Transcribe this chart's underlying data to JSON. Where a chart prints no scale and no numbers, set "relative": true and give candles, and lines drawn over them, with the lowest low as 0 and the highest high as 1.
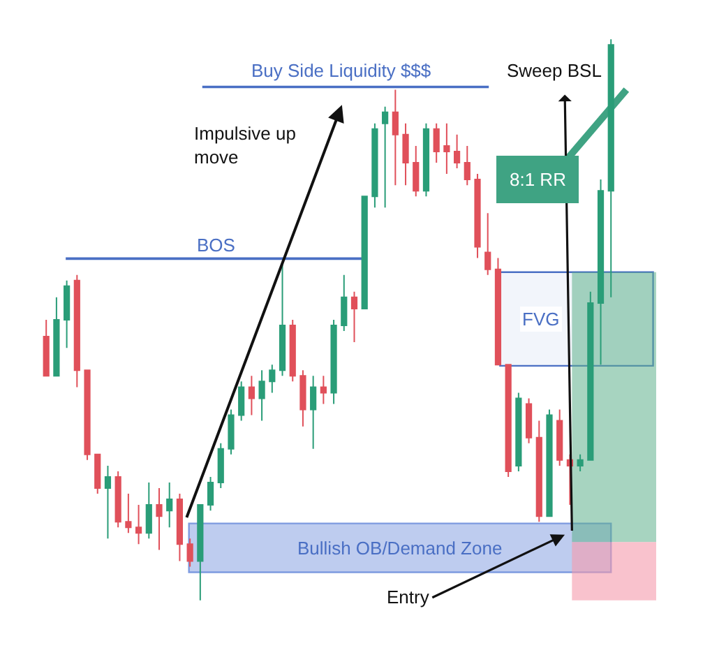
{
  "chart_data": {
    "type": "candlestick",
    "relative": true,
    "categories": [
      null,
      null,
      null,
      null,
      null,
      null,
      null,
      null,
      null,
      null,
      null,
      null,
      null,
      null,
      null,
      null,
      null,
      null,
      null,
      null,
      null,
      null,
      null,
      null,
      null,
      null,
      null,
      null,
      null,
      null,
      null,
      null,
      null,
      null,
      null,
      null,
      null,
      null,
      null,
      null,
      null,
      null,
      null,
      null,
      null,
      null,
      null,
      null,
      null,
      null,
      null,
      null,
      null,
      null,
      null,
      null
    ],
    "ohlc": [
      [
        0.47,
        0.5,
        0.4,
        0.4
      ],
      [
        0.4,
        0.54,
        0.4,
        0.5
      ],
      [
        0.5,
        0.57,
        0.45,
        0.56
      ],
      [
        0.57,
        0.58,
        0.38,
        0.41
      ],
      [
        0.41,
        0.41,
        0.25,
        0.26
      ],
      [
        0.26,
        0.26,
        0.19,
        0.2
      ],
      [
        0.2,
        0.24,
        0.11,
        0.22
      ],
      [
        0.22,
        0.23,
        0.13,
        0.14
      ],
      [
        0.14,
        0.19,
        0.12,
        0.13
      ],
      [
        0.13,
        0.17,
        0.1,
        0.12
      ],
      [
        0.12,
        0.21,
        0.11,
        0.17
      ],
      [
        0.17,
        0.2,
        0.09,
        0.15
      ],
      [
        0.16,
        0.21,
        0.13,
        0.18
      ],
      [
        0.18,
        0.19,
        0.07,
        0.1
      ],
      [
        0.1,
        0.11,
        0.06,
        0.07
      ],
      [
        0.07,
        0.17,
        0.0,
        0.17
      ],
      [
        0.17,
        0.22,
        0.16,
        0.21
      ],
      [
        0.21,
        0.28,
        0.2,
        0.27
      ],
      [
        0.27,
        0.34,
        0.26,
        0.33
      ],
      [
        0.33,
        0.39,
        0.32,
        0.38
      ],
      [
        0.38,
        0.4,
        0.33,
        0.36
      ],
      [
        0.36,
        0.41,
        0.32,
        0.39
      ],
      [
        0.39,
        0.42,
        0.37,
        0.41
      ],
      [
        0.41,
        0.6,
        0.4,
        0.49
      ],
      [
        0.49,
        0.5,
        0.39,
        0.4
      ],
      [
        0.4,
        0.41,
        0.31,
        0.34
      ],
      [
        0.34,
        0.4,
        0.27,
        0.38
      ],
      [
        0.38,
        0.4,
        0.35,
        0.37
      ],
      [
        0.37,
        0.5,
        0.35,
        0.49
      ],
      [
        0.49,
        0.58,
        0.48,
        0.54
      ],
      [
        0.54,
        0.55,
        0.46,
        0.52
      ],
      [
        0.52,
        0.72,
        0.52,
        0.72
      ],
      [
        0.72,
        0.85,
        0.7,
        0.84
      ],
      [
        0.85,
        0.88,
        0.7,
        0.87
      ],
      [
        0.87,
        0.91,
        0.74,
        0.83
      ],
      [
        0.83,
        0.85,
        0.74,
        0.78
      ],
      [
        0.78,
        0.81,
        0.72,
        0.73
      ],
      [
        0.73,
        0.85,
        0.72,
        0.84
      ],
      [
        0.84,
        0.85,
        0.78,
        0.8
      ],
      [
        0.81,
        0.85,
        0.76,
        0.8
      ],
      [
        0.8,
        0.83,
        0.77,
        0.78
      ],
      [
        0.78,
        0.81,
        0.74,
        0.75
      ],
      [
        0.75,
        0.76,
        0.61,
        0.63
      ],
      [
        0.62,
        0.69,
        0.58,
        0.59
      ],
      [
        0.59,
        0.61,
        0.42,
        0.42
      ],
      [
        0.42,
        0.42,
        0.22,
        0.23
      ],
      [
        0.24,
        0.37,
        0.23,
        0.36
      ],
      [
        0.35,
        0.36,
        0.28,
        0.29
      ],
      [
        0.29,
        0.32,
        0.14,
        0.15
      ],
      [
        0.15,
        0.34,
        0.15,
        0.33
      ],
      [
        0.32,
        0.34,
        0.24,
        0.25
      ],
      [
        0.25,
        0.26,
        0.17,
        0.24
      ],
      [
        0.24,
        0.26,
        0.23,
        0.25
      ],
      [
        0.25,
        0.55,
        0.25,
        0.53
      ],
      [
        0.53,
        0.75,
        0.42,
        0.73
      ],
      [
        0.73,
        1.0,
        0.54,
        0.99
      ]
    ],
    "colors": [
      "#e0505a",
      "#2a9d78",
      "#2a9d78",
      "#e0505a",
      "#e0505a",
      "#e0505a",
      "#2a9d78",
      "#e0505a",
      "#e0505a",
      "#e0505a",
      "#2a9d78",
      "#e0505a",
      "#2a9d78",
      "#e0505a",
      "#e0505a",
      "#2a9d78",
      "#2a9d78",
      "#2a9d78",
      "#2a9d78",
      "#2a9d78",
      "#e0505a",
      "#2a9d78",
      "#2a9d78",
      "#2a9d78",
      "#e0505a",
      "#e0505a",
      "#2a9d78",
      "#e0505a",
      "#2a9d78",
      "#2a9d78",
      "#e0505a",
      "#2a9d78",
      "#2a9d78",
      "#2a9d78",
      "#e0505a",
      "#e0505a",
      "#e0505a",
      "#2a9d78",
      "#e0505a",
      "#e0505a",
      "#e0505a",
      "#e0505a",
      "#e0505a",
      "#e0505a",
      "#e0505a",
      "#e0505a",
      "#2a9d78",
      "#e0505a",
      "#e0505a",
      "#2a9d78",
      "#e0505a",
      "#e0505a",
      "#2a9d78",
      "#2a9d78",
      "#2a9d78",
      "#2a9d78"
    ],
    "ref_lines": [
      {
        "axis": "y",
        "value": 0.915,
        "label": "Buy Side Liquidity $$$",
        "color": "#4a6fc4"
      },
      {
        "axis": "y",
        "value": 0.609,
        "label": "BOS",
        "color": "#4a6fc4"
      }
    ],
    "bands": [
      {
        "axis": "y",
        "from": 0.05,
        "to": 0.137,
        "label": "Bullish OB/Demand Zone",
        "color": "#7d9ae0"
      },
      {
        "axis": "y",
        "from": 0.418,
        "to": 0.585,
        "label": "FVG",
        "color": "#4a6fc4"
      },
      {
        "axis": "y",
        "from": 0.104,
        "to": 0.585,
        "color": "#5fb08c"
      },
      {
        "axis": "y",
        "from": 0.0,
        "to": 0.104,
        "color": "#f59aab"
      }
    ],
    "annotations": [
      "Impulsive up move",
      "Sweep BSL",
      "8:1 RR",
      "Entry"
    ]
  }
}
